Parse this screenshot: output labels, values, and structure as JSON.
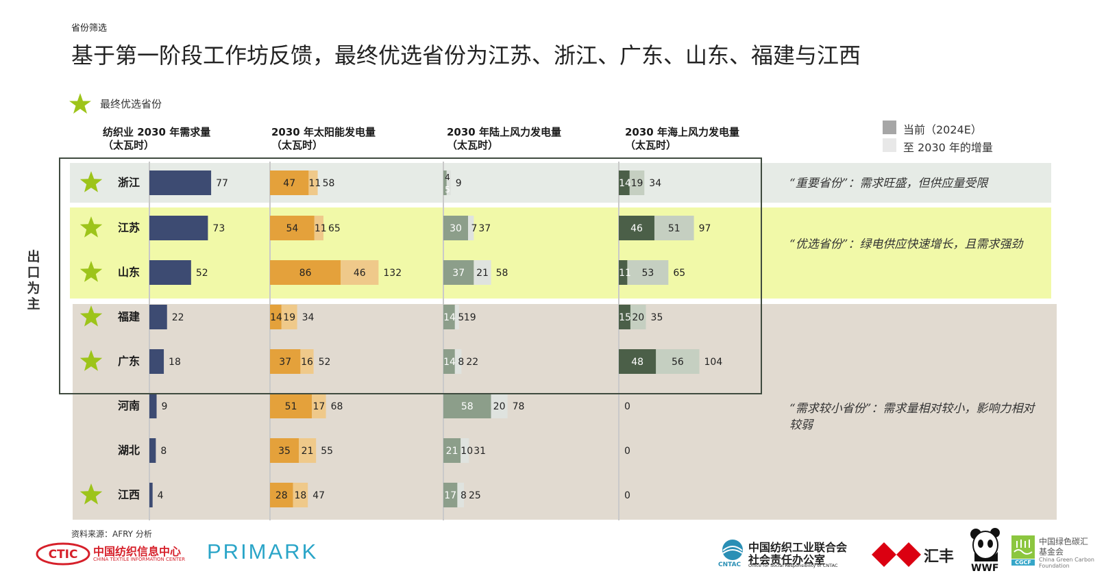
{
  "header": {
    "kicker": "省份筛选",
    "title": "基于第一阶段工作坊反馈，最终优选省份为江苏、浙江、广东、山东、福建与江西"
  },
  "legend": {
    "star_label": "最终优选省份",
    "current_label": "当前（2024E）",
    "increase_label": "至 2030 年的增量"
  },
  "columns": {
    "demand": "纺织业 2030 年需求量\n（太瓦时）",
    "solar": "2030 年太阳能发电量\n（太瓦时）",
    "onshore": "2030 年陆上风力发电量\n（太瓦时）",
    "offshore": "2030 年海上风力发电量\n（太瓦时）"
  },
  "side_label": "出口为主",
  "notes": {
    "important": "“重要省份”：需求旺盛，但供应量受限",
    "preferred": "“优选省份”：绿电供应快速增长，且需求强劲",
    "small": "“需求较小省份”：需求量相对较小，影响力相对较弱"
  },
  "source": "资料来源：AFRY 分析",
  "logos": {
    "ctic_cn": "中国纺织信息中心",
    "ctic_en": "CHINA TEXTILE INFORMATION CENTER",
    "ctic_mark": "CTIC",
    "primark": "PRIMARK",
    "cntac_cn1": "中国纺织工业联合会",
    "cntac_cn2": "社会责任办公室",
    "cntac_en": "Office for Social Responsibility of CNTAC",
    "cntac_mark": "CNTAC",
    "hsbc": "汇丰",
    "wwf": "WWF",
    "cgcf_cn1": "中国绿色碳汇",
    "cgcf_cn2": "基金会",
    "cgcf_en1": "China Green Carbon",
    "cgcf_en2": "Foundation",
    "cgcf_mark": "CGCF"
  },
  "colors": {
    "demand": "#3d4b72",
    "solar_current": "#e4a13b",
    "solar_increase": "#efc98a",
    "onshore_current": "#8c9e8a",
    "onshore_increase": "#dfe3df",
    "offshore_current": "#4b5f48",
    "offshore_increase": "#c5cfc1",
    "band_important": "#e6ebe6",
    "band_preferred": "#f1f9a8",
    "band_small": "#e1dad0",
    "star": "#9dc41a"
  },
  "chart_data": {
    "type": "bar",
    "title": "基于第一阶段工作坊反馈，最终优选省份为江苏、浙江、广东、山东、福建与江西",
    "unit": "太瓦时",
    "categories": [
      "浙江",
      "江苏",
      "山东",
      "福建",
      "广东",
      "河南",
      "湖北",
      "江西"
    ],
    "final_selected": [
      true,
      true,
      true,
      true,
      true,
      false,
      false,
      true
    ],
    "groups": [
      "重要省份",
      "优选省份",
      "优选省份",
      "需求较小省份",
      "需求较小省份",
      "需求较小省份",
      "需求较小省份",
      "需求较小省份"
    ],
    "demand_2030": [
      77,
      73,
      52,
      22,
      18,
      9,
      8,
      4
    ],
    "solar": {
      "current": [
        47,
        54,
        86,
        14,
        37,
        51,
        35,
        28
      ],
      "increase": [
        11,
        11,
        46,
        19,
        16,
        17,
        21,
        18
      ],
      "total": [
        58,
        65,
        132,
        34,
        52,
        68,
        55,
        47
      ]
    },
    "onshore_wind": {
      "current": [
        4,
        30,
        37,
        14,
        14,
        58,
        21,
        17
      ],
      "increase": [
        5,
        7,
        21,
        5,
        8,
        20,
        10,
        8
      ],
      "total": [
        9,
        37,
        58,
        19,
        22,
        78,
        31,
        25
      ]
    },
    "offshore_wind": {
      "current": [
        14,
        46,
        11,
        15,
        48,
        null,
        null,
        null
      ],
      "increase": [
        19,
        51,
        53,
        20,
        56,
        null,
        null,
        null
      ],
      "total": [
        34,
        97,
        65,
        35,
        104,
        0,
        0,
        0
      ]
    }
  }
}
